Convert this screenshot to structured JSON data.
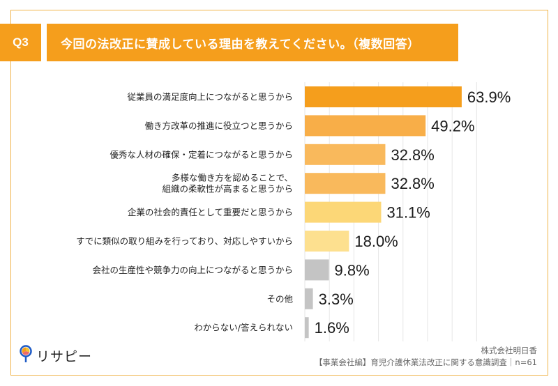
{
  "header": {
    "question_number": "Q3",
    "title": "今回の法改正に賛成している理由を教えてください。（複数回答）"
  },
  "chart_data": {
    "type": "bar",
    "orientation": "horizontal",
    "title": "今回の法改正に賛成している理由を教えてください。（複数回答）",
    "xlabel": "",
    "ylabel": "",
    "xlim": [
      0,
      70
    ],
    "grid": true,
    "grid_step": 10,
    "value_suffix": "%",
    "categories": [
      [
        "従業員の満足度向上につながると思うから"
      ],
      [
        "働き方改革の推進に役立つと思うから"
      ],
      [
        "優秀な人材の確保・定着につながると思うから"
      ],
      [
        "多様な働き方を認めることで、",
        "組織の柔軟性が高まると思うから"
      ],
      [
        "企業の社会的責任として重要だと思うから"
      ],
      [
        "すでに類似の取り組みを行っており、対応しやすいから"
      ],
      [
        "会社の生産性や競争力の向上につながると思うから"
      ],
      [
        "その他"
      ],
      [
        "わからない/答えられない"
      ]
    ],
    "values": [
      63.9,
      49.2,
      32.8,
      32.8,
      31.1,
      18.0,
      9.8,
      3.3,
      1.6
    ],
    "value_labels": [
      "63.9%",
      "49.2%",
      "32.8%",
      "32.8%",
      "31.1%",
      "18.0%",
      "9.8%",
      "3.3%",
      "1.6%"
    ],
    "bar_colors": [
      "#f59e1c",
      "#f8ae48",
      "#f9b95c",
      "#f9b95c",
      "#fcd777",
      "#fde08f",
      "#c4c4c4",
      "#c4c4c4",
      "#c4c4c4"
    ],
    "gridline_color": "#e6e6e6"
  },
  "footer": {
    "logo_text": "リサピー",
    "company": "株式会社明日香",
    "survey": "【事業会社編】育児介護休業法改正に関する意識調査｜n=61"
  },
  "colors": {
    "accent": "#f59e1c",
    "frame": "#f0b44a"
  }
}
